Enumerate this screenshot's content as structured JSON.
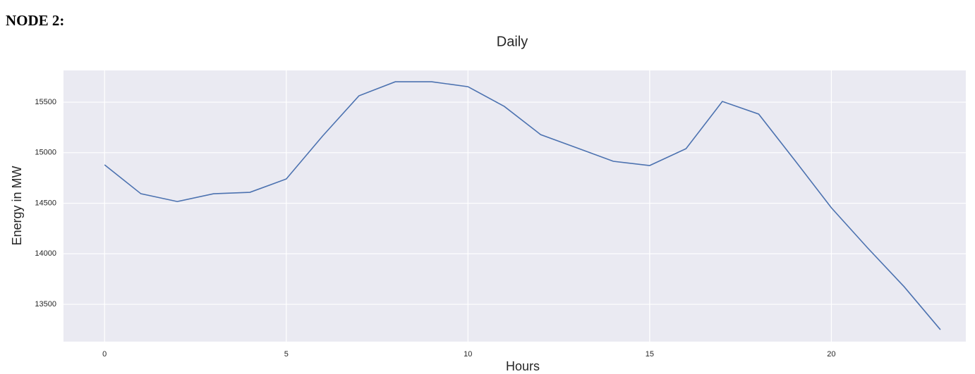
{
  "header": "NODE 2:",
  "chart_data": {
    "type": "line",
    "title": "Daily",
    "x_label": "Hours",
    "y_label": "Energy in MW",
    "x": [
      0,
      1,
      2,
      3,
      4,
      5,
      6,
      7,
      8,
      9,
      10,
      11,
      12,
      13,
      14,
      15,
      16,
      17,
      18,
      19,
      20,
      21,
      22,
      23
    ],
    "series": [
      {
        "name": "Energy",
        "color": "#4c72b0",
        "values": [
          14880,
          14594,
          14517,
          14594,
          14608,
          14740,
          15165,
          15563,
          15702,
          15702,
          15653,
          15458,
          15179,
          15047,
          14915,
          14873,
          15040,
          15507,
          15382,
          14922,
          14455,
          14057,
          13675,
          13249
        ]
      }
    ],
    "xlim": [
      -1.13,
      23.7
    ],
    "xticks": [
      0,
      5,
      10,
      15,
      20
    ],
    "ylim": [
      13131,
      15814
    ],
    "yticks": [
      13500,
      14000,
      14500,
      15000,
      15500
    ],
    "grid": true,
    "background": "#eaeaf2"
  }
}
